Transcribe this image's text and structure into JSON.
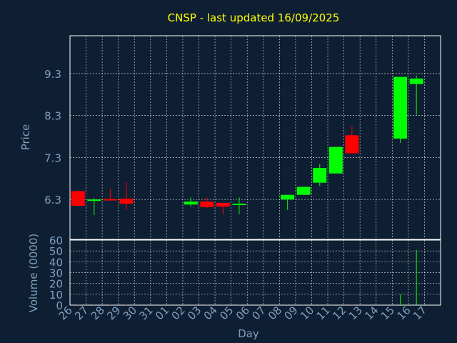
{
  "title": "CNSP - last updated 16/09/2025",
  "colors": {
    "background": "#0f1f33",
    "title": "#ffff00",
    "axis_text": "#7f9fbf",
    "grid": "#ffffff",
    "frame": "#ffffff",
    "up": "#00ff00",
    "down": "#ff0000"
  },
  "chart_data": [
    {
      "type": "candlestick",
      "ylabel": "Price",
      "yticks": [
        "6.3",
        "7.3",
        "8.3",
        "9.3"
      ],
      "ylim": [
        5.35,
        10.2
      ],
      "grid": true,
      "categories": [
        "26",
        "27",
        "28",
        "29",
        "30",
        "31",
        "01",
        "02",
        "03",
        "04",
        "05",
        "06",
        "07",
        "08",
        "09",
        "10",
        "11",
        "12",
        "13",
        "14",
        "15",
        "16",
        "17"
      ],
      "candles": [
        {
          "x": "26",
          "open": 6.5,
          "close": 6.15,
          "high": 6.5,
          "low": 6.15
        },
        {
          "x": "27",
          "open": 6.27,
          "close": 6.3,
          "high": 6.33,
          "low": 5.93
        },
        {
          "x": "28",
          "open": 6.31,
          "close": 6.28,
          "high": 6.55,
          "low": 6.28
        },
        {
          "x": "29",
          "open": 6.32,
          "close": 6.2,
          "high": 6.72,
          "low": 6.05
        },
        {
          "x": "02",
          "open": 6.18,
          "close": 6.25,
          "high": 6.35,
          "low": 6.13
        },
        {
          "x": "03",
          "open": 6.25,
          "close": 6.12,
          "high": 6.35,
          "low": 6.1
        },
        {
          "x": "04",
          "open": 6.22,
          "close": 6.13,
          "high": 6.22,
          "low": 5.95
        },
        {
          "x": "05",
          "open": 6.18,
          "close": 6.2,
          "high": 6.35,
          "low": 5.95
        },
        {
          "x": "08",
          "open": 6.3,
          "close": 6.41,
          "high": 6.41,
          "low": 6.05
        },
        {
          "x": "09",
          "open": 6.41,
          "close": 6.6,
          "high": 6.6,
          "low": 6.41
        },
        {
          "x": "10",
          "open": 6.7,
          "close": 7.05,
          "high": 7.15,
          "low": 6.62
        },
        {
          "x": "11",
          "open": 6.92,
          "close": 7.55,
          "high": 7.55,
          "low": 6.92
        },
        {
          "x": "12",
          "open": 7.83,
          "close": 7.4,
          "high": 8.05,
          "low": 7.4
        },
        {
          "x": "15",
          "open": 7.75,
          "close": 9.22,
          "high": 9.22,
          "low": 7.65
        },
        {
          "x": "16",
          "open": 9.05,
          "close": 9.18,
          "high": 9.25,
          "low": 8.32
        }
      ]
    },
    {
      "type": "bar",
      "ylabel": "Volume (0000)",
      "xlabel": "Day",
      "yticks": [
        "0",
        "10",
        "20",
        "30",
        "40",
        "50",
        "60"
      ],
      "ylim": [
        0,
        60
      ],
      "grid": true,
      "volumes": [
        {
          "x": "26",
          "value": 0.3
        },
        {
          "x": "27",
          "value": 0.3
        },
        {
          "x": "28",
          "value": 0.4
        },
        {
          "x": "29",
          "value": 0.4
        },
        {
          "x": "02",
          "value": 0.2
        },
        {
          "x": "03",
          "value": 0.2
        },
        {
          "x": "04",
          "value": 0.2
        },
        {
          "x": "05",
          "value": 0.2
        },
        {
          "x": "08",
          "value": 0.3
        },
        {
          "x": "09",
          "value": 0.3
        },
        {
          "x": "10",
          "value": 0.5
        },
        {
          "x": "11",
          "value": 0.8
        },
        {
          "x": "12",
          "value": 0.6
        },
        {
          "x": "15",
          "value": 10
        },
        {
          "x": "16",
          "value": 51
        }
      ]
    }
  ]
}
